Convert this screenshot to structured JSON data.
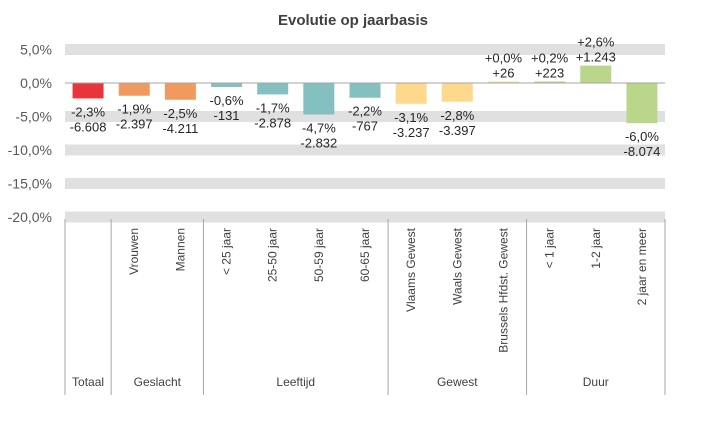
{
  "chart_data": {
    "type": "bar",
    "title": "Evolutie op jaarbasis",
    "xlabel": "",
    "ylabel": "",
    "ylim": [
      -20,
      5
    ],
    "yticks": [
      "5,0%",
      "0,0%",
      "-5,0%",
      "-10,0%",
      "-15,0%",
      "-20,0%"
    ],
    "ytick_values": [
      5,
      0,
      -5,
      -10,
      -15,
      -20
    ],
    "grid": "banded horizontal",
    "legend": "none",
    "categories": [
      "",
      "Vrouwen",
      "Mannen",
      "< 25 jaar",
      "25-50 jaar",
      "50-59 jaar",
      "60-65 jaar",
      "Vlaams Gewest",
      "Waals Gewest",
      "Brussels Hfdst. Gewest",
      "< 1 jaar",
      "1-2 jaar",
      "2 jaar en meer"
    ],
    "values": [
      -2.3,
      -1.9,
      -2.5,
      -0.6,
      -1.7,
      -4.7,
      -2.2,
      -3.1,
      -2.8,
      0.0,
      0.2,
      2.6,
      -6.0
    ],
    "pct_labels": [
      "-2,3%",
      "-1,9%",
      "-2,5%",
      "-0,6%",
      "-1,7%",
      "-4,7%",
      "-2,2%",
      "-3,1%",
      "-2,8%",
      "+0,0%",
      "+0,2%",
      "+2,6%",
      "-6,0%"
    ],
    "abs_labels": [
      "-6.608",
      "-2.397",
      "-4.211",
      "-131",
      "-2.878",
      "-2.832",
      "-767",
      "-3.237",
      "-3.397",
      "+26",
      "+223",
      "+1.243",
      "-8.074"
    ],
    "groups": [
      {
        "label": "Totaal",
        "start": 0,
        "count": 1,
        "color": "#E9343A"
      },
      {
        "label": "Geslacht",
        "start": 1,
        "count": 2,
        "color": "#F19A5F"
      },
      {
        "label": "Leeftijd",
        "start": 3,
        "count": 4,
        "color": "#84C0C0"
      },
      {
        "label": "Gewest",
        "start": 7,
        "count": 3,
        "color": "#FDD88D"
      },
      {
        "label": "Duur",
        "start": 10,
        "count": 3,
        "color": "#BAD68B"
      }
    ]
  }
}
